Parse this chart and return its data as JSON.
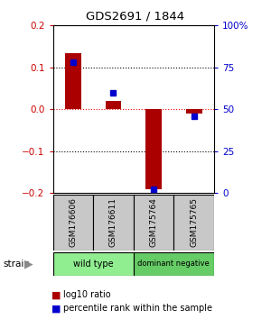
{
  "title": "GDS2691 / 1844",
  "samples": [
    "GSM176606",
    "GSM176611",
    "GSM175764",
    "GSM175765"
  ],
  "log10_ratio": [
    0.133,
    0.02,
    -0.19,
    -0.01
  ],
  "percentile_rank": [
    78,
    60,
    2,
    46
  ],
  "groups": [
    {
      "label": "wild type",
      "color": "#90EE90",
      "samples": [
        0,
        1
      ]
    },
    {
      "label": "dominant negative",
      "color": "#66CC66",
      "samples": [
        2,
        3
      ]
    }
  ],
  "ylim": [
    -0.2,
    0.2
  ],
  "y2lim": [
    0,
    100
  ],
  "bar_color": "#AA0000",
  "dot_color": "#0000CC",
  "grid_line_color": "#000000",
  "zero_line_color": "#FF0000",
  "left_axis_color": "#CC0000",
  "right_axis_color": "#0000CC",
  "sample_box_color": "#C8C8C8",
  "yticks_left": [
    -0.2,
    -0.1,
    0.0,
    0.1,
    0.2
  ],
  "yticks_right": [
    0,
    25,
    50,
    75,
    100
  ],
  "bar_width": 0.4
}
